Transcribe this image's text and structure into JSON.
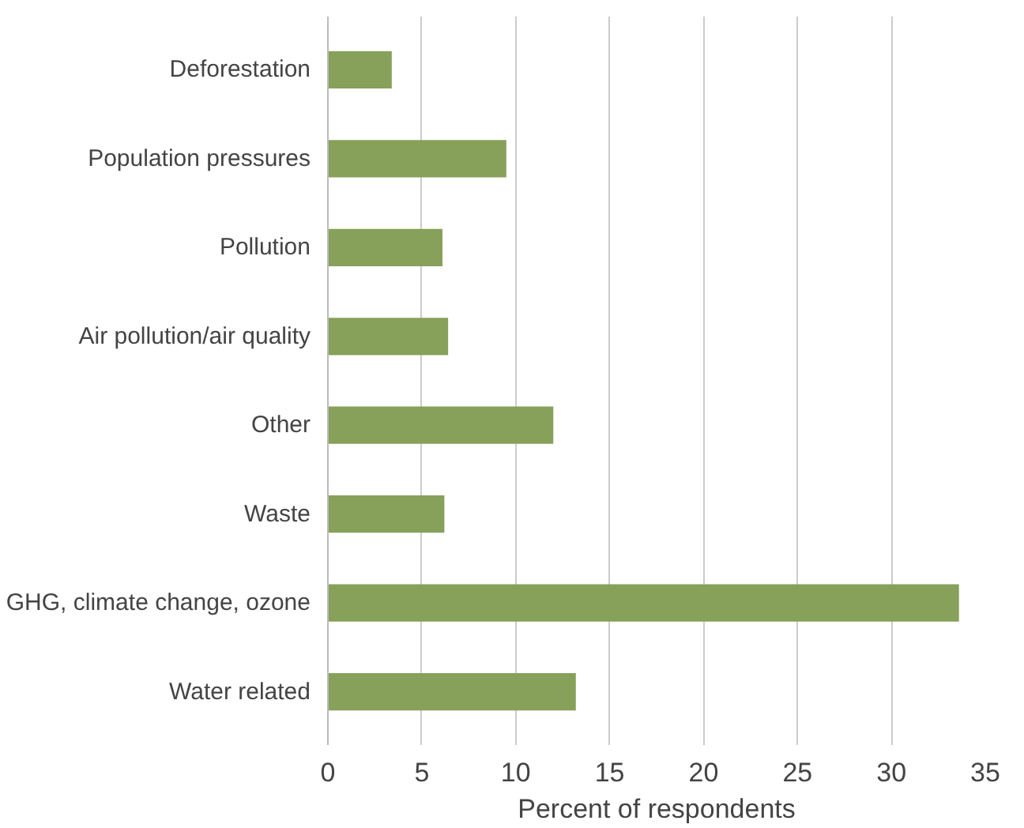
{
  "chart_data": {
    "type": "bar",
    "orientation": "horizontal",
    "xlabel": "Percent of respondents",
    "categories": [
      "Deforestation",
      "Population pressures",
      "Pollution",
      "Air pollution/air quality",
      "Other",
      "Waste",
      "GHG, climate change, ozone",
      "Water related"
    ],
    "values": [
      3.4,
      9.5,
      6.1,
      6.4,
      12.0,
      6.2,
      33.6,
      13.2
    ],
    "color": "#87a05a",
    "xlim": [
      0,
      35
    ],
    "xticks": [
      0,
      5,
      10,
      15,
      20,
      25,
      30,
      35
    ],
    "grid": "x"
  }
}
